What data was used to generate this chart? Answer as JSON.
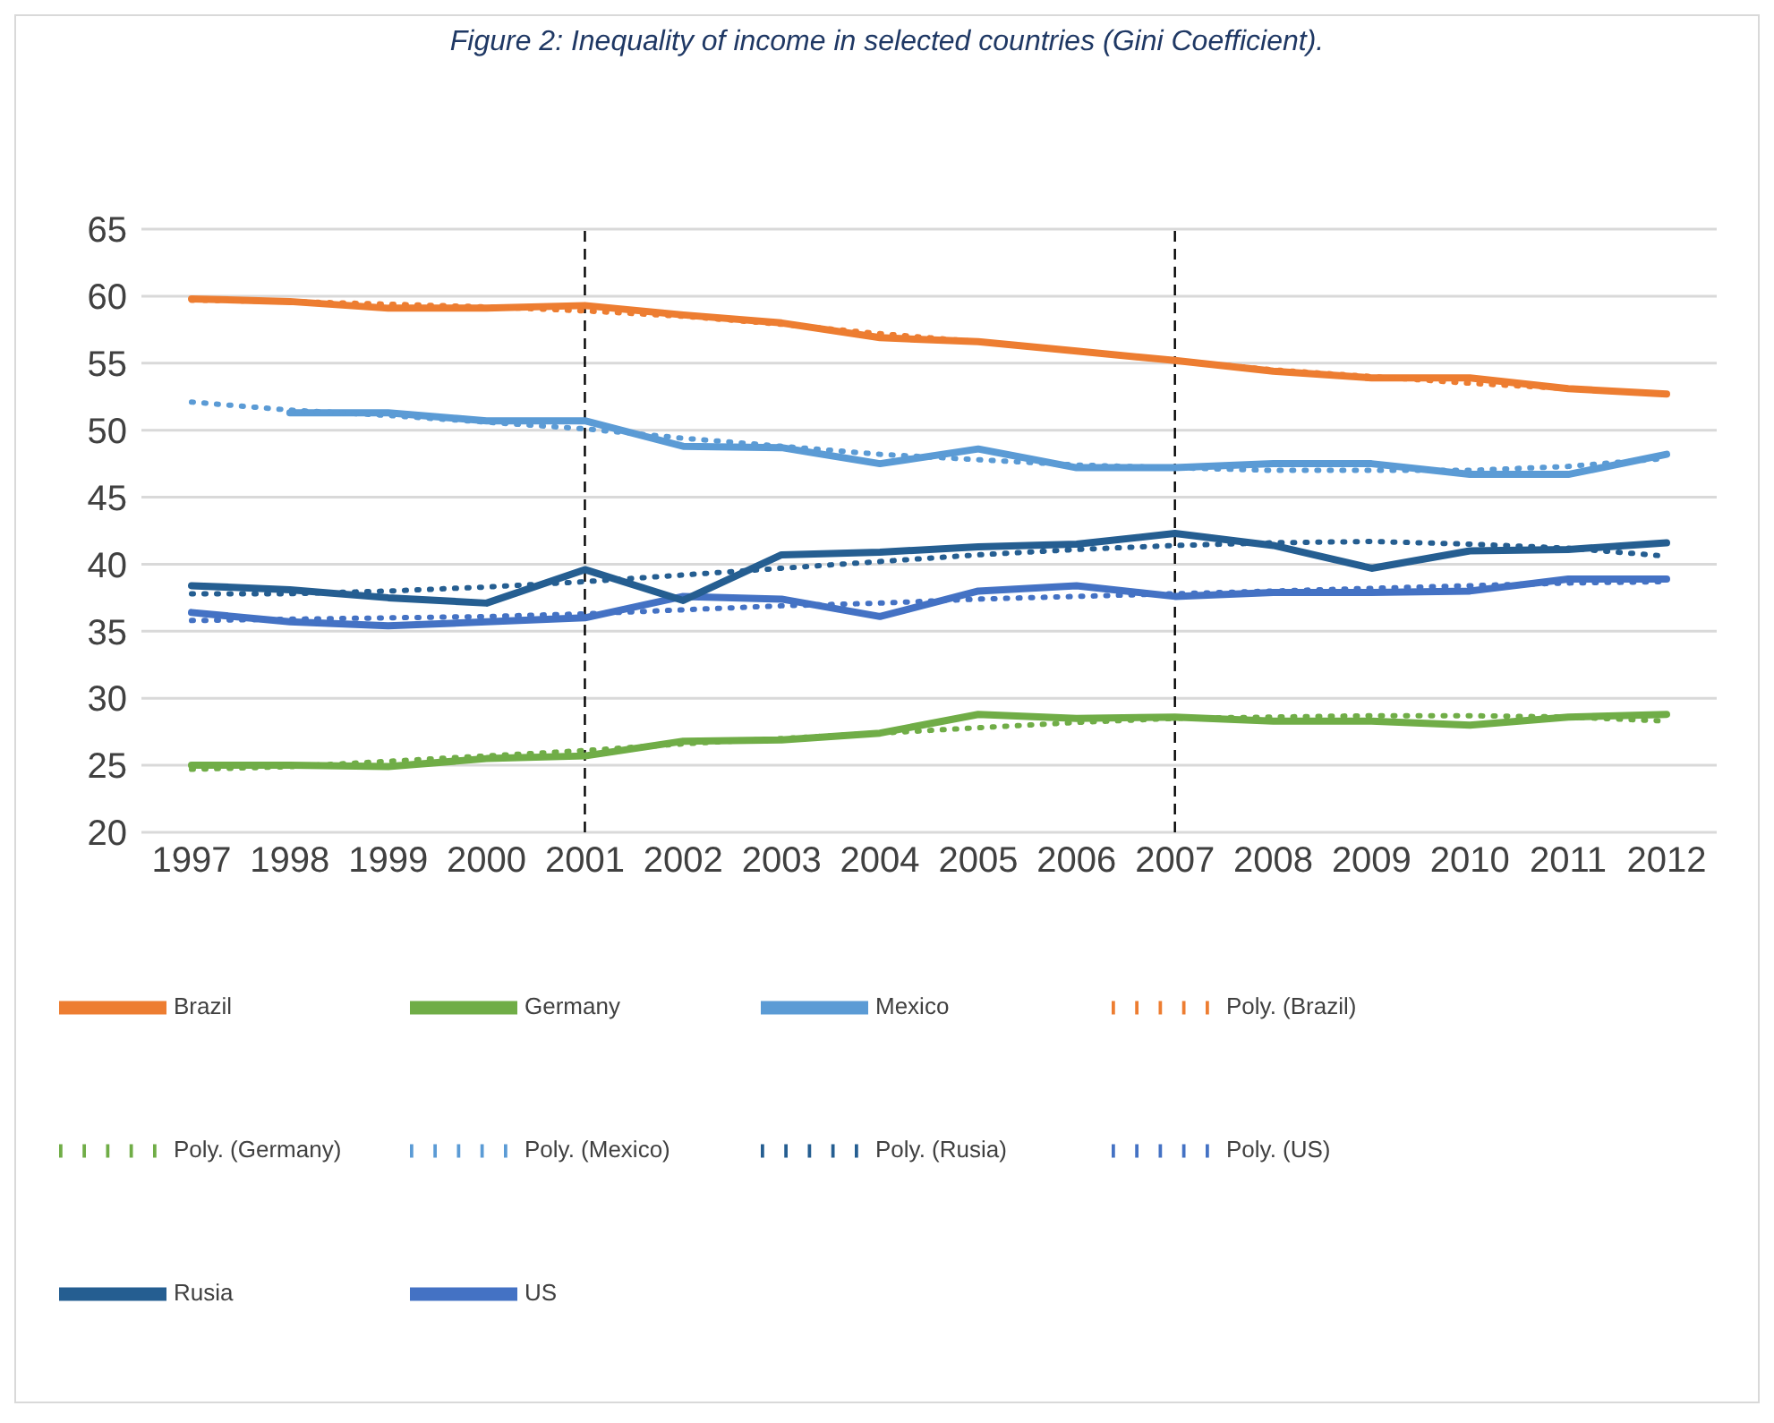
{
  "chart_data": {
    "type": "line",
    "title": "Figure 2: Inequality of income in selected countries (Gini Coefficient).",
    "categories": [
      "1997",
      "1998",
      "1999",
      "2000",
      "2001",
      "2002",
      "2003",
      "2004",
      "2005",
      "2006",
      "2007",
      "2008",
      "2009",
      "2010",
      "2011",
      "2012"
    ],
    "series": [
      {
        "name": "Mexico",
        "color": "#5b9bd5",
        "line_style": "solid",
        "values": [
          null,
          51.3,
          51.3,
          50.7,
          50.7,
          48.8,
          48.7,
          47.5,
          48.6,
          47.2,
          47.2,
          47.5,
          47.5,
          46.7,
          46.7,
          48.2
        ]
      },
      {
        "name": "Brazil",
        "color": "#ed7d31",
        "line_style": "solid",
        "values": [
          59.8,
          59.6,
          59.1,
          59.1,
          59.3,
          58.6,
          58.0,
          56.9,
          56.6,
          55.9,
          55.2,
          54.4,
          53.9,
          53.9,
          53.1,
          52.7
        ]
      },
      {
        "name": "US",
        "color": "#4472c4",
        "line_style": "solid",
        "values": [
          36.4,
          35.7,
          35.4,
          35.7,
          36.0,
          37.6,
          37.4,
          36.1,
          38.0,
          38.4,
          37.6,
          37.9,
          37.9,
          38.0,
          38.9,
          38.9
        ]
      },
      {
        "name": "Germany",
        "color": "#70ad47",
        "line_style": "solid",
        "values": [
          25.0,
          25.0,
          24.9,
          25.5,
          25.7,
          26.8,
          26.9,
          27.4,
          28.8,
          28.5,
          28.6,
          28.3,
          28.3,
          28.0,
          28.6,
          28.8
        ]
      },
      {
        "name": "Rusia",
        "color": "#255e91",
        "line_style": "solid",
        "values": [
          38.4,
          38.1,
          37.5,
          37.1,
          39.6,
          37.3,
          40.7,
          40.9,
          41.3,
          41.5,
          42.3,
          41.4,
          39.7,
          41.0,
          41.1,
          41.6
        ]
      },
      {
        "name": "Poly. (Mexico)",
        "color": "#5b9bd5",
        "line_style": "dotted",
        "values": [
          52.1,
          51.5,
          51.1,
          50.6,
          50.1,
          49.4,
          48.8,
          48.2,
          47.8,
          47.4,
          47.2,
          47.0,
          47.0,
          47.0,
          47.3,
          47.9
        ]
      },
      {
        "name": "Poly. (Brazil)",
        "color": "#ed7d31",
        "line_style": "dotted",
        "values": [
          59.7,
          59.6,
          59.4,
          59.2,
          58.9,
          58.5,
          57.9,
          57.2,
          56.6,
          55.9,
          55.2,
          54.5,
          54.0,
          53.5,
          53.1,
          52.7
        ]
      },
      {
        "name": "Poly. (US)",
        "color": "#4472c4",
        "line_style": "dotted",
        "values": [
          35.8,
          35.9,
          36.0,
          36.1,
          36.3,
          36.6,
          36.9,
          37.1,
          37.4,
          37.6,
          37.8,
          38.0,
          38.2,
          38.4,
          38.6,
          38.7
        ]
      },
      {
        "name": "Poly. (Germany)",
        "color": "#70ad47",
        "line_style": "dotted",
        "values": [
          24.7,
          24.9,
          25.3,
          25.7,
          26.1,
          26.6,
          27.0,
          27.4,
          27.8,
          28.2,
          28.5,
          28.6,
          28.7,
          28.7,
          28.6,
          28.3
        ]
      },
      {
        "name": "Poly. (Rusia)",
        "color": "#255e91",
        "line_style": "dotted",
        "values": [
          37.8,
          37.8,
          38.0,
          38.3,
          38.7,
          39.2,
          39.7,
          40.2,
          40.7,
          41.1,
          41.4,
          41.6,
          41.7,
          41.5,
          41.2,
          40.6
        ]
      }
    ],
    "ylim": [
      20,
      65
    ],
    "yticks": [
      20,
      25,
      30,
      35,
      40,
      45,
      50,
      55,
      60,
      65
    ],
    "grid": "y",
    "legend": "bottom",
    "marker": "none",
    "ref_lines": [
      {
        "axis": "x",
        "value": "2001",
        "color": "#000000",
        "line_style": "dashed"
      },
      {
        "axis": "x",
        "value": "2007",
        "color": "#000000",
        "line_style": "dashed"
      }
    ]
  }
}
